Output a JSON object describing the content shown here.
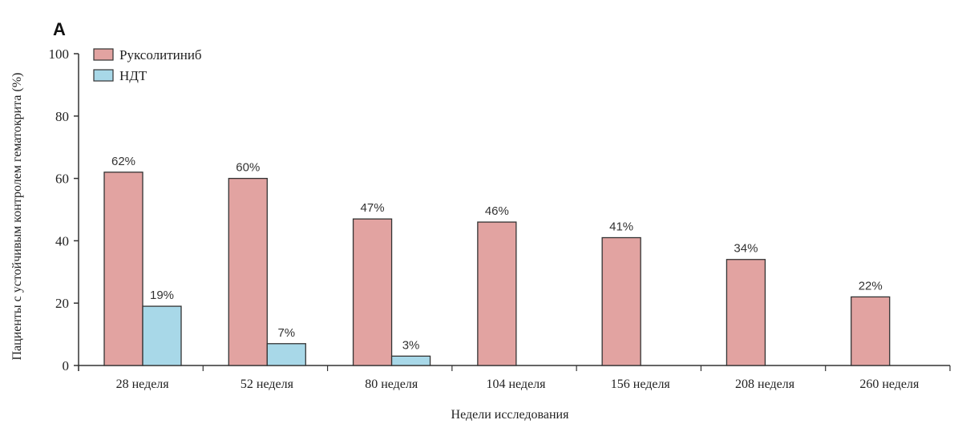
{
  "panel_label": "A",
  "chart_data": {
    "type": "bar",
    "title": "",
    "xlabel": "Недели исследования",
    "ylabel": "Пациенты с устойчивым контролем гематокрита (%)",
    "ylim": [
      0,
      100
    ],
    "yticks": [
      "0",
      "20",
      "40",
      "60",
      "80",
      "100"
    ],
    "categories": [
      "28 неделя",
      "52 неделя",
      "80 неделя",
      "104 неделя",
      "156 неделя",
      "208 неделя",
      "260 неделя"
    ],
    "series": [
      {
        "name": "Руксолитиниб",
        "color": "#e2a3a1",
        "values": [
          62,
          60,
          47,
          46,
          41,
          34,
          22
        ],
        "labels": [
          "62%",
          "60%",
          "47%",
          "46%",
          "41%",
          "34%",
          "22%"
        ]
      },
      {
        "name": "НДТ",
        "color": "#a8d8e8",
        "values": [
          19,
          7,
          3,
          null,
          null,
          null,
          null
        ],
        "labels": [
          "19%",
          "7%",
          "3%",
          "",
          "",
          "",
          ""
        ]
      }
    ],
    "legend_position": "top-left",
    "grid": false
  }
}
